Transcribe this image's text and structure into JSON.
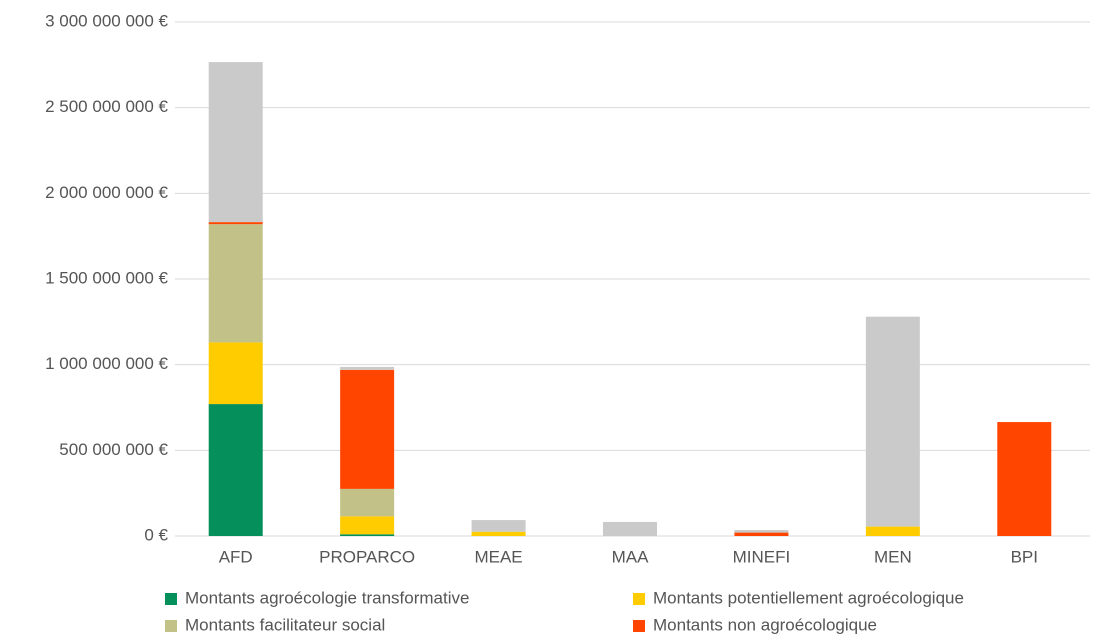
{
  "chart_data": {
    "type": "stacked_bar",
    "categories": [
      "AFD",
      "PROPARCO",
      "MEAE",
      "MAA",
      "MINEFI",
      "MEN",
      "BPI"
    ],
    "series": [
      {
        "name": "Montants agroécologie transformative",
        "color": "#058f5b",
        "values": [
          770000000,
          10000000,
          0,
          0,
          0,
          0,
          0
        ]
      },
      {
        "name": "Montants potentiellement agroécologique",
        "color": "#ffcc00",
        "values": [
          360000000,
          105000000,
          25000000,
          0,
          0,
          55000000,
          0
        ]
      },
      {
        "name": "Montants facilitateur social",
        "color": "#c2c288",
        "values": [
          690000000,
          160000000,
          0,
          0,
          0,
          0,
          0
        ]
      },
      {
        "name": "Montants non agroécologique",
        "color": "#ff4500",
        "values": [
          12000000,
          695000000,
          0,
          0,
          20000000,
          0,
          665000000
        ]
      },
      {
        "color": "#cacaca",
        "values": [
          934000000,
          17000000,
          68000000,
          82000000,
          15000000,
          1225000000,
          0
        ]
      }
    ],
    "ylim": [
      0,
      3000000000
    ],
    "yticks": [
      {
        "value": 0,
        "label": "0 €"
      },
      {
        "value": 500000000,
        "label": "500 000 000 €"
      },
      {
        "value": 1000000000,
        "label": "1 000 000 000 €"
      },
      {
        "value": 1500000000,
        "label": "1 500 000 000 €"
      },
      {
        "value": 2000000000,
        "label": "2 000 000 000 €"
      },
      {
        "value": 2500000000,
        "label": "2 500 000 000 €"
      },
      {
        "value": 3000000000,
        "label": "3 000 000 000 €"
      }
    ],
    "grid": true,
    "legend": "bottom"
  }
}
